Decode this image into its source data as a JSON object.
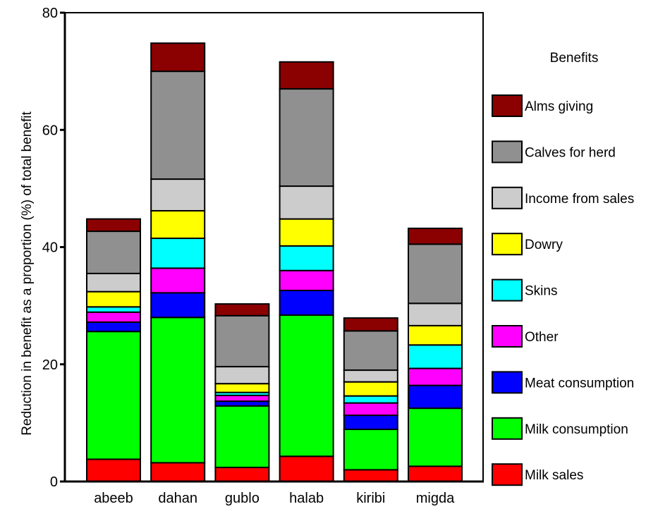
{
  "chart_data": {
    "type": "bar",
    "stacked": true,
    "title": "",
    "xlabel": "",
    "ylabel": "Reduction in benefit as a proportion (%) of total benefit",
    "ylim": [
      0,
      80
    ],
    "yticks": [
      0,
      20,
      40,
      60,
      80
    ],
    "grid": false,
    "legend_title": "Benefits",
    "legend_position": "right",
    "categories": [
      "abeeb",
      "dahan",
      "gublo",
      "halab",
      "kiribi",
      "migda"
    ],
    "series": [
      {
        "name": "Milk sales",
        "color": "#ff0000",
        "values": [
          3.8,
          3.2,
          2.4,
          4.3,
          2.0,
          2.6
        ]
      },
      {
        "name": "Milk consumption",
        "color": "#00ff00",
        "values": [
          21.8,
          24.8,
          10.5,
          24.1,
          6.9,
          9.9
        ]
      },
      {
        "name": "Meat consumption",
        "color": "#0000ff",
        "values": [
          1.6,
          4.2,
          0.8,
          4.2,
          2.4,
          3.9
        ]
      },
      {
        "name": "Other",
        "color": "#ff00ff",
        "values": [
          1.7,
          4.2,
          1.0,
          3.4,
          2.1,
          2.9
        ]
      },
      {
        "name": "Skins",
        "color": "#00ffff",
        "values": [
          0.9,
          5.1,
          0.5,
          4.2,
          1.2,
          4.0
        ]
      },
      {
        "name": "Dowry",
        "color": "#ffff00",
        "values": [
          2.6,
          4.7,
          1.5,
          4.6,
          2.4,
          3.3
        ]
      },
      {
        "name": "Income from sales",
        "color": "#cccccc",
        "values": [
          3.1,
          5.4,
          2.9,
          5.6,
          2.0,
          3.8
        ]
      },
      {
        "name": "Calves for herd",
        "color": "#909090",
        "values": [
          7.2,
          18.4,
          8.7,
          16.6,
          6.7,
          10.1
        ]
      },
      {
        "name": "Alms giving",
        "color": "#8b0000",
        "values": [
          2.1,
          4.8,
          2.0,
          4.6,
          2.2,
          2.7
        ]
      }
    ]
  }
}
